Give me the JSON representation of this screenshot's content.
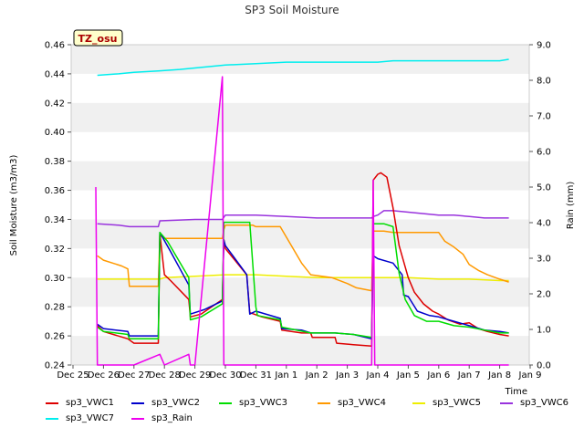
{
  "chart_data": {
    "type": "line",
    "title": "SP3 Soil Moisture",
    "xlabel": "Time",
    "ylabel": "Soil Moisture (m3/m3)",
    "y2label": "Rain (mm)",
    "station_tag": "TZ_osu",
    "xlim": [
      0,
      15
    ],
    "ylim": [
      0.24,
      0.46
    ],
    "y2lim": [
      0.0,
      9.0
    ],
    "grid": "horizontal bands",
    "legend_position": "bottom",
    "x_ticks": [
      {
        "x": 0,
        "label": "Dec 25"
      },
      {
        "x": 1,
        "label": "Dec 26"
      },
      {
        "x": 2,
        "label": "Dec 27"
      },
      {
        "x": 3,
        "label": "Dec 28"
      },
      {
        "x": 4,
        "label": "Dec 29"
      },
      {
        "x": 5,
        "label": "Dec 30"
      },
      {
        "x": 6,
        "label": "Dec 31"
      },
      {
        "x": 7,
        "label": "Jan 1"
      },
      {
        "x": 8,
        "label": "Jan 2"
      },
      {
        "x": 9,
        "label": "Jan 3"
      },
      {
        "x": 10,
        "label": "Jan 4"
      },
      {
        "x": 11,
        "label": "Jan 5"
      },
      {
        "x": 12,
        "label": "Jan 6"
      },
      {
        "x": 13,
        "label": "Jan 7"
      },
      {
        "x": 14,
        "label": "Jan 8"
      },
      {
        "x": 15,
        "label": "Jan 9"
      }
    ],
    "y_ticks": [
      "0.24",
      "0.26",
      "0.28",
      "0.30",
      "0.32",
      "0.34",
      "0.36",
      "0.38",
      "0.40",
      "0.42",
      "0.44",
      "0.46"
    ],
    "y2_ticks": [
      "0.0",
      "1.0",
      "2.0",
      "3.0",
      "4.0",
      "5.0",
      "6.0",
      "7.0",
      "8.0",
      "9.0"
    ],
    "series": [
      {
        "name": "sp3_VWC1",
        "color": "#dd0000",
        "axis": "left",
        "points": [
          [
            0.8,
            0.267
          ],
          [
            1.0,
            0.263
          ],
          [
            1.8,
            0.258
          ],
          [
            2.0,
            0.255
          ],
          [
            2.8,
            0.255
          ],
          [
            2.85,
            0.33
          ],
          [
            3.0,
            0.302
          ],
          [
            3.2,
            0.298
          ],
          [
            3.8,
            0.285
          ],
          [
            3.85,
            0.273
          ],
          [
            4.2,
            0.275
          ],
          [
            4.9,
            0.285
          ],
          [
            4.95,
            0.326
          ],
          [
            5.0,
            0.32
          ],
          [
            5.7,
            0.302
          ],
          [
            5.8,
            0.276
          ],
          [
            6.2,
            0.273
          ],
          [
            6.8,
            0.27
          ],
          [
            6.85,
            0.264
          ],
          [
            7.5,
            0.262
          ],
          [
            7.8,
            0.262
          ],
          [
            7.85,
            0.259
          ],
          [
            8.6,
            0.259
          ],
          [
            8.65,
            0.255
          ],
          [
            9.2,
            0.254
          ],
          [
            9.8,
            0.253
          ],
          [
            9.85,
            0.367
          ],
          [
            10.0,
            0.371
          ],
          [
            10.1,
            0.372
          ],
          [
            10.3,
            0.369
          ],
          [
            10.5,
            0.348
          ],
          [
            10.7,
            0.322
          ],
          [
            11.0,
            0.3
          ],
          [
            11.2,
            0.29
          ],
          [
            11.5,
            0.282
          ],
          [
            11.8,
            0.277
          ],
          [
            12.0,
            0.275
          ],
          [
            12.3,
            0.271
          ],
          [
            12.7,
            0.268
          ],
          [
            13.0,
            0.269
          ],
          [
            13.3,
            0.265
          ],
          [
            13.6,
            0.263
          ],
          [
            14.0,
            0.261
          ],
          [
            14.3,
            0.26
          ]
        ]
      },
      {
        "name": "sp3_VWC2",
        "color": "#0000cc",
        "axis": "left",
        "points": [
          [
            0.8,
            0.268
          ],
          [
            1.0,
            0.265
          ],
          [
            1.8,
            0.263
          ],
          [
            1.85,
            0.26
          ],
          [
            2.8,
            0.26
          ],
          [
            2.85,
            0.331
          ],
          [
            3.2,
            0.318
          ],
          [
            3.8,
            0.295
          ],
          [
            3.85,
            0.275
          ],
          [
            4.3,
            0.278
          ],
          [
            4.9,
            0.284
          ],
          [
            4.95,
            0.326
          ],
          [
            5.0,
            0.322
          ],
          [
            5.6,
            0.305
          ],
          [
            5.7,
            0.302
          ],
          [
            5.8,
            0.275
          ],
          [
            6.0,
            0.277
          ],
          [
            6.8,
            0.272
          ],
          [
            6.85,
            0.265
          ],
          [
            7.5,
            0.264
          ],
          [
            7.8,
            0.262
          ],
          [
            8.6,
            0.262
          ],
          [
            9.2,
            0.261
          ],
          [
            9.8,
            0.258
          ],
          [
            9.85,
            0.315
          ],
          [
            10.0,
            0.313
          ],
          [
            10.5,
            0.31
          ],
          [
            10.8,
            0.302
          ],
          [
            10.85,
            0.288
          ],
          [
            11.0,
            0.287
          ],
          [
            11.3,
            0.277
          ],
          [
            11.7,
            0.274
          ],
          [
            12.0,
            0.273
          ],
          [
            12.5,
            0.27
          ],
          [
            13.0,
            0.267
          ],
          [
            13.5,
            0.264
          ],
          [
            14.0,
            0.263
          ],
          [
            14.3,
            0.262
          ]
        ]
      },
      {
        "name": "sp3_VWC3",
        "color": "#00dd00",
        "axis": "left",
        "points": [
          [
            0.8,
            0.266
          ],
          [
            1.0,
            0.263
          ],
          [
            1.8,
            0.261
          ],
          [
            1.85,
            0.258
          ],
          [
            2.8,
            0.258
          ],
          [
            2.85,
            0.331
          ],
          [
            3.1,
            0.325
          ],
          [
            3.8,
            0.3
          ],
          [
            3.85,
            0.271
          ],
          [
            4.2,
            0.273
          ],
          [
            4.9,
            0.282
          ],
          [
            4.95,
            0.338
          ],
          [
            5.8,
            0.338
          ],
          [
            6.0,
            0.28
          ],
          [
            6.05,
            0.274
          ],
          [
            6.8,
            0.271
          ],
          [
            6.85,
            0.266
          ],
          [
            7.8,
            0.262
          ],
          [
            8.6,
            0.262
          ],
          [
            9.2,
            0.261
          ],
          [
            9.8,
            0.259
          ],
          [
            9.85,
            0.337
          ],
          [
            10.2,
            0.337
          ],
          [
            10.5,
            0.335
          ],
          [
            10.7,
            0.303
          ],
          [
            10.9,
            0.285
          ],
          [
            11.2,
            0.274
          ],
          [
            11.6,
            0.27
          ],
          [
            12.0,
            0.27
          ],
          [
            12.5,
            0.267
          ],
          [
            13.0,
            0.266
          ],
          [
            13.5,
            0.264
          ],
          [
            14.0,
            0.262
          ],
          [
            14.3,
            0.262
          ]
        ]
      },
      {
        "name": "sp3_VWC4",
        "color": "#ff9900",
        "axis": "left",
        "points": [
          [
            0.8,
            0.315
          ],
          [
            1.0,
            0.312
          ],
          [
            1.6,
            0.308
          ],
          [
            1.8,
            0.306
          ],
          [
            1.85,
            0.294
          ],
          [
            2.8,
            0.294
          ],
          [
            2.85,
            0.329
          ],
          [
            3.0,
            0.327
          ],
          [
            3.8,
            0.327
          ],
          [
            4.9,
            0.327
          ],
          [
            4.95,
            0.333
          ],
          [
            5.0,
            0.336
          ],
          [
            5.9,
            0.336
          ],
          [
            6.0,
            0.335
          ],
          [
            6.8,
            0.335
          ],
          [
            7.5,
            0.31
          ],
          [
            7.8,
            0.302
          ],
          [
            8.5,
            0.3
          ],
          [
            9.0,
            0.296
          ],
          [
            9.3,
            0.293
          ],
          [
            9.8,
            0.291
          ],
          [
            9.85,
            0.332
          ],
          [
            10.2,
            0.332
          ],
          [
            10.5,
            0.331
          ],
          [
            11.0,
            0.331
          ],
          [
            11.5,
            0.331
          ],
          [
            12.0,
            0.331
          ],
          [
            12.2,
            0.325
          ],
          [
            12.5,
            0.321
          ],
          [
            12.8,
            0.316
          ],
          [
            13.0,
            0.309
          ],
          [
            13.3,
            0.305
          ],
          [
            13.6,
            0.302
          ],
          [
            14.0,
            0.299
          ],
          [
            14.3,
            0.297
          ]
        ]
      },
      {
        "name": "sp3_VWC5",
        "color": "#eeee00",
        "axis": "left",
        "points": [
          [
            0.8,
            0.299
          ],
          [
            2.0,
            0.299
          ],
          [
            2.85,
            0.299
          ],
          [
            3.0,
            0.3
          ],
          [
            4.0,
            0.301
          ],
          [
            5.0,
            0.302
          ],
          [
            6.0,
            0.302
          ],
          [
            7.0,
            0.301
          ],
          [
            8.0,
            0.3
          ],
          [
            9.0,
            0.3
          ],
          [
            10.0,
            0.3
          ],
          [
            11.0,
            0.3
          ],
          [
            12.0,
            0.299
          ],
          [
            13.0,
            0.299
          ],
          [
            14.0,
            0.298
          ],
          [
            14.3,
            0.298
          ]
        ]
      },
      {
        "name": "sp3_VWC6",
        "color": "#9933dd",
        "axis": "left",
        "points": [
          [
            0.8,
            0.337
          ],
          [
            1.5,
            0.336
          ],
          [
            1.85,
            0.335
          ],
          [
            2.8,
            0.335
          ],
          [
            2.85,
            0.339
          ],
          [
            4.0,
            0.34
          ],
          [
            4.9,
            0.34
          ],
          [
            5.0,
            0.343
          ],
          [
            6.0,
            0.343
          ],
          [
            7.0,
            0.342
          ],
          [
            8.0,
            0.341
          ],
          [
            9.0,
            0.341
          ],
          [
            9.8,
            0.341
          ],
          [
            9.85,
            0.342
          ],
          [
            10.0,
            0.343
          ],
          [
            10.2,
            0.346
          ],
          [
            10.5,
            0.346
          ],
          [
            11.0,
            0.345
          ],
          [
            11.5,
            0.344
          ],
          [
            12.0,
            0.343
          ],
          [
            12.5,
            0.343
          ],
          [
            13.0,
            0.342
          ],
          [
            13.5,
            0.341
          ],
          [
            14.0,
            0.341
          ],
          [
            14.3,
            0.341
          ]
        ]
      },
      {
        "name": "sp3_VWC7",
        "color": "#00eeee",
        "axis": "left",
        "points": [
          [
            0.8,
            0.439
          ],
          [
            1.5,
            0.44
          ],
          [
            2.0,
            0.441
          ],
          [
            2.8,
            0.442
          ],
          [
            3.5,
            0.443
          ],
          [
            4.0,
            0.444
          ],
          [
            5.0,
            0.446
          ],
          [
            6.0,
            0.447
          ],
          [
            7.0,
            0.448
          ],
          [
            8.0,
            0.448
          ],
          [
            9.0,
            0.448
          ],
          [
            10.0,
            0.448
          ],
          [
            10.5,
            0.449
          ],
          [
            11.0,
            0.449
          ],
          [
            12.0,
            0.449
          ],
          [
            13.0,
            0.449
          ],
          [
            14.0,
            0.449
          ],
          [
            14.3,
            0.45
          ]
        ]
      },
      {
        "name": "sp3_Rain",
        "color": "#ee00ee",
        "axis": "right",
        "points": [
          [
            0.75,
            5.0
          ],
          [
            0.8,
            0.0
          ],
          [
            1.0,
            0.0
          ],
          [
            2.0,
            0.0
          ],
          [
            2.85,
            0.3
          ],
          [
            3.0,
            0.0
          ],
          [
            3.8,
            0.3
          ],
          [
            3.85,
            0.0
          ],
          [
            4.0,
            0.0
          ],
          [
            4.9,
            8.1
          ],
          [
            4.95,
            0.0
          ],
          [
            6.0,
            0.0
          ],
          [
            7.0,
            0.0
          ],
          [
            8.0,
            0.0
          ],
          [
            9.0,
            0.0
          ],
          [
            9.8,
            0.0
          ],
          [
            9.85,
            5.2
          ],
          [
            9.9,
            0.0
          ],
          [
            11.0,
            0.0
          ],
          [
            12.0,
            0.0
          ],
          [
            13.0,
            0.0
          ],
          [
            14.0,
            0.0
          ],
          [
            14.3,
            0.0
          ]
        ]
      }
    ]
  }
}
